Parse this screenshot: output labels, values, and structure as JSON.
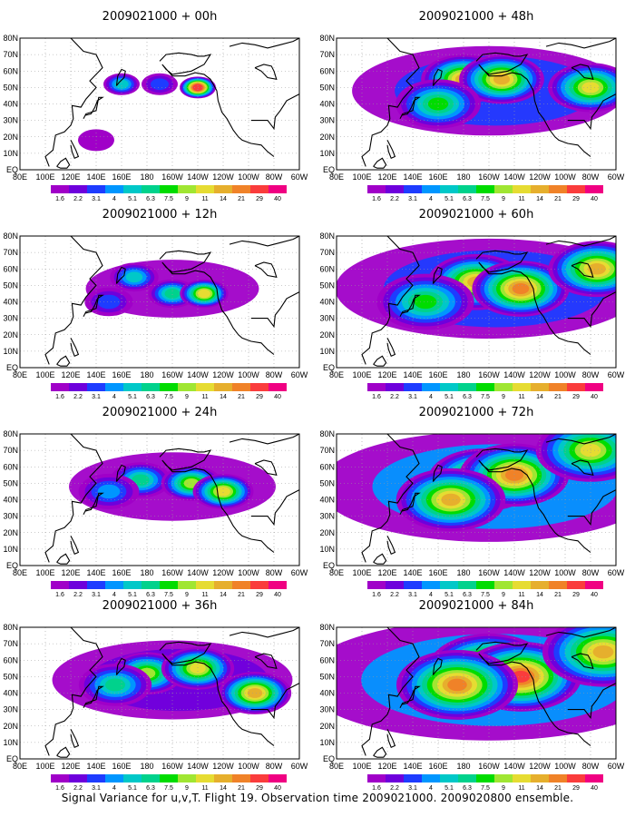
{
  "caption": "Signal Variance for u,v,T. Flight 19. Observation time 2009021000. 2009020800 ensemble.",
  "colors": {
    "background": "#ffffff",
    "coastline": "#000000",
    "gridline": "#9a9a9a",
    "levels": [
      "#a000c8",
      "#6e00dc",
      "#1e3cff",
      "#0096ff",
      "#00c8c8",
      "#00d28c",
      "#00dc00",
      "#a0e632",
      "#e6dc32",
      "#e6af2d",
      "#f08228",
      "#fa3c3c",
      "#f00082"
    ]
  },
  "chart_data": [
    {
      "type": "heatmap",
      "title": "2009021000 + 00h",
      "lead_hours": 0,
      "x_ticks": [
        "80E",
        "100E",
        "120E",
        "140E",
        "160E",
        "180",
        "160W",
        "140W",
        "120W",
        "100W",
        "80W",
        "60W"
      ],
      "y_ticks": [
        "EQ",
        "10N",
        "20N",
        "30N",
        "40N",
        "50N",
        "60N",
        "70N",
        "80N"
      ],
      "xlim": [
        "80E",
        "60W"
      ],
      "ylim": [
        "EQ",
        "80N"
      ],
      "grid": true,
      "colorbar": {
        "bounds": [
          1.6,
          2.2,
          3.1,
          4,
          5.1,
          6.3,
          7.5,
          9,
          11,
          14,
          21,
          29,
          40
        ]
      },
      "features": [
        {
          "lon": 160,
          "lat": 52,
          "value": 5.1
        },
        {
          "lon": 220,
          "lat": 50,
          "value": 29
        },
        {
          "lon": 190,
          "lat": 52,
          "value": 3.1
        },
        {
          "lon": 140,
          "lat": 18,
          "value": 1.6
        }
      ]
    },
    {
      "type": "heatmap",
      "title": "2009021000 + 12h",
      "lead_hours": 12,
      "x_ticks": [
        "80E",
        "100E",
        "120E",
        "140E",
        "160E",
        "180",
        "160W",
        "140W",
        "120W",
        "100W",
        "80W",
        "60W"
      ],
      "y_ticks": [
        "EQ",
        "10N",
        "20N",
        "30N",
        "40N",
        "50N",
        "60N",
        "70N",
        "80N"
      ],
      "xlim": [
        "80E",
        "60W"
      ],
      "ylim": [
        "EQ",
        "80N"
      ],
      "grid": true,
      "colorbar": {
        "bounds": [
          1.6,
          2.2,
          3.1,
          4,
          5.1,
          6.3,
          7.5,
          9,
          11,
          14,
          21,
          29,
          40
        ]
      },
      "features": [
        {
          "lon": 170,
          "lat": 55,
          "value": 5.1
        },
        {
          "lon": 200,
          "lat": 45,
          "value": 6.3
        },
        {
          "lon": 225,
          "lat": 45,
          "value": 11
        },
        {
          "lon": 150,
          "lat": 40,
          "value": 3.1
        }
      ]
    },
    {
      "type": "heatmap",
      "title": "2009021000 + 24h",
      "lead_hours": 24,
      "x_ticks": [
        "80E",
        "100E",
        "120E",
        "140E",
        "160E",
        "180",
        "160W",
        "140W",
        "120W",
        "100W",
        "80W",
        "60W"
      ],
      "y_ticks": [
        "EQ",
        "10N",
        "20N",
        "30N",
        "40N",
        "50N",
        "60N",
        "70N",
        "80N"
      ],
      "xlim": [
        "80E",
        "60W"
      ],
      "ylim": [
        "EQ",
        "80N"
      ],
      "grid": true,
      "colorbar": {
        "bounds": [
          1.6,
          2.2,
          3.1,
          4,
          5.1,
          6.3,
          7.5,
          9,
          11,
          14,
          21,
          29,
          40
        ]
      },
      "features": [
        {
          "lon": 175,
          "lat": 52,
          "value": 6.3
        },
        {
          "lon": 215,
          "lat": 50,
          "value": 9
        },
        {
          "lon": 240,
          "lat": 45,
          "value": 11
        },
        {
          "lon": 150,
          "lat": 45,
          "value": 4
        }
      ]
    },
    {
      "type": "heatmap",
      "title": "2009021000 + 36h",
      "lead_hours": 36,
      "x_ticks": [
        "80E",
        "100E",
        "120E",
        "140E",
        "160E",
        "180",
        "160W",
        "140W",
        "120W",
        "100W",
        "80W",
        "60W"
      ],
      "y_ticks": [
        "EQ",
        "10N",
        "20N",
        "30N",
        "40N",
        "50N",
        "60N",
        "70N",
        "80N"
      ],
      "xlim": [
        "80E",
        "60W"
      ],
      "ylim": [
        "EQ",
        "80N"
      ],
      "grid": true,
      "colorbar": {
        "bounds": [
          1.6,
          2.2,
          3.1,
          4,
          5.1,
          6.3,
          7.5,
          9,
          11,
          14,
          21,
          29,
          40
        ]
      },
      "features": [
        {
          "lon": 180,
          "lat": 52,
          "value": 9
        },
        {
          "lon": 220,
          "lat": 55,
          "value": 11
        },
        {
          "lon": 265,
          "lat": 40,
          "value": 14
        },
        {
          "lon": 155,
          "lat": 45,
          "value": 6.3
        }
      ]
    },
    {
      "type": "heatmap",
      "title": "2009021000 + 48h",
      "lead_hours": 48,
      "x_ticks": [
        "80E",
        "100E",
        "120E",
        "140E",
        "160E",
        "180",
        "160W",
        "140W",
        "120W",
        "100W",
        "80W",
        "60W"
      ],
      "y_ticks": [
        "EQ",
        "10N",
        "20N",
        "30N",
        "40N",
        "50N",
        "60N",
        "70N",
        "80N"
      ],
      "xlim": [
        "80E",
        "60W"
      ],
      "ylim": [
        "EQ",
        "80N"
      ],
      "grid": true,
      "colorbar": {
        "bounds": [
          1.6,
          2.2,
          3.1,
          4,
          5.1,
          6.3,
          7.5,
          9,
          11,
          14,
          21,
          29,
          40
        ]
      },
      "features": [
        {
          "lon": 180,
          "lat": 55,
          "value": 14
        },
        {
          "lon": 210,
          "lat": 55,
          "value": 14
        },
        {
          "lon": 280,
          "lat": 50,
          "value": 11
        },
        {
          "lon": 160,
          "lat": 40,
          "value": 7.5
        }
      ]
    },
    {
      "type": "heatmap",
      "title": "2009021000 + 60h",
      "lead_hours": 60,
      "x_ticks": [
        "80E",
        "100E",
        "120E",
        "140E",
        "160E",
        "180",
        "160W",
        "140W",
        "120W",
        "100W",
        "80W",
        "60W"
      ],
      "y_ticks": [
        "EQ",
        "10N",
        "20N",
        "30N",
        "40N",
        "50N",
        "60N",
        "70N",
        "80N"
      ],
      "xlim": [
        "80E",
        "60W"
      ],
      "ylim": [
        "EQ",
        "80N"
      ],
      "grid": true,
      "colorbar": {
        "bounds": [
          1.6,
          2.2,
          3.1,
          4,
          5.1,
          6.3,
          7.5,
          9,
          11,
          14,
          21,
          29,
          40
        ]
      },
      "features": [
        {
          "lon": 190,
          "lat": 52,
          "value": 14
        },
        {
          "lon": 225,
          "lat": 48,
          "value": 21
        },
        {
          "lon": 285,
          "lat": 60,
          "value": 14
        },
        {
          "lon": 150,
          "lat": 40,
          "value": 7.5
        }
      ]
    },
    {
      "type": "heatmap",
      "title": "2009021000 + 72h",
      "lead_hours": 72,
      "x_ticks": [
        "80E",
        "100E",
        "120E",
        "140E",
        "160E",
        "180",
        "160W",
        "140W",
        "120W",
        "100W",
        "80W",
        "60W"
      ],
      "y_ticks": [
        "EQ",
        "10N",
        "20N",
        "30N",
        "40N",
        "50N",
        "60N",
        "70N",
        "80N"
      ],
      "xlim": [
        "80E",
        "60W"
      ],
      "ylim": [
        "EQ",
        "80N"
      ],
      "grid": true,
      "colorbar": {
        "bounds": [
          1.6,
          2.2,
          3.1,
          4,
          5.1,
          6.3,
          7.5,
          9,
          11,
          14,
          21,
          29,
          40
        ]
      },
      "features": [
        {
          "lon": 195,
          "lat": 52,
          "value": 21
        },
        {
          "lon": 220,
          "lat": 55,
          "value": 21
        },
        {
          "lon": 170,
          "lat": 40,
          "value": 14
        },
        {
          "lon": 280,
          "lat": 70,
          "value": 11
        }
      ]
    },
    {
      "type": "heatmap",
      "title": "2009021000 + 84h",
      "lead_hours": 84,
      "x_ticks": [
        "80E",
        "100E",
        "120E",
        "140E",
        "160E",
        "180",
        "160W",
        "140W",
        "120W",
        "100W",
        "80W",
        "60W"
      ],
      "y_ticks": [
        "EQ",
        "10N",
        "20N",
        "30N",
        "40N",
        "50N",
        "60N",
        "70N",
        "80N"
      ],
      "xlim": [
        "80E",
        "60W"
      ],
      "ylim": [
        "EQ",
        "80N"
      ],
      "grid": true,
      "colorbar": {
        "bounds": [
          1.6,
          2.2,
          3.1,
          4,
          5.1,
          6.3,
          7.5,
          9,
          11,
          14,
          21,
          29,
          40
        ]
      },
      "features": [
        {
          "lon": 200,
          "lat": 55,
          "value": 29
        },
        {
          "lon": 225,
          "lat": 50,
          "value": 29
        },
        {
          "lon": 175,
          "lat": 45,
          "value": 21
        },
        {
          "lon": 290,
          "lat": 65,
          "value": 14
        }
      ]
    }
  ]
}
